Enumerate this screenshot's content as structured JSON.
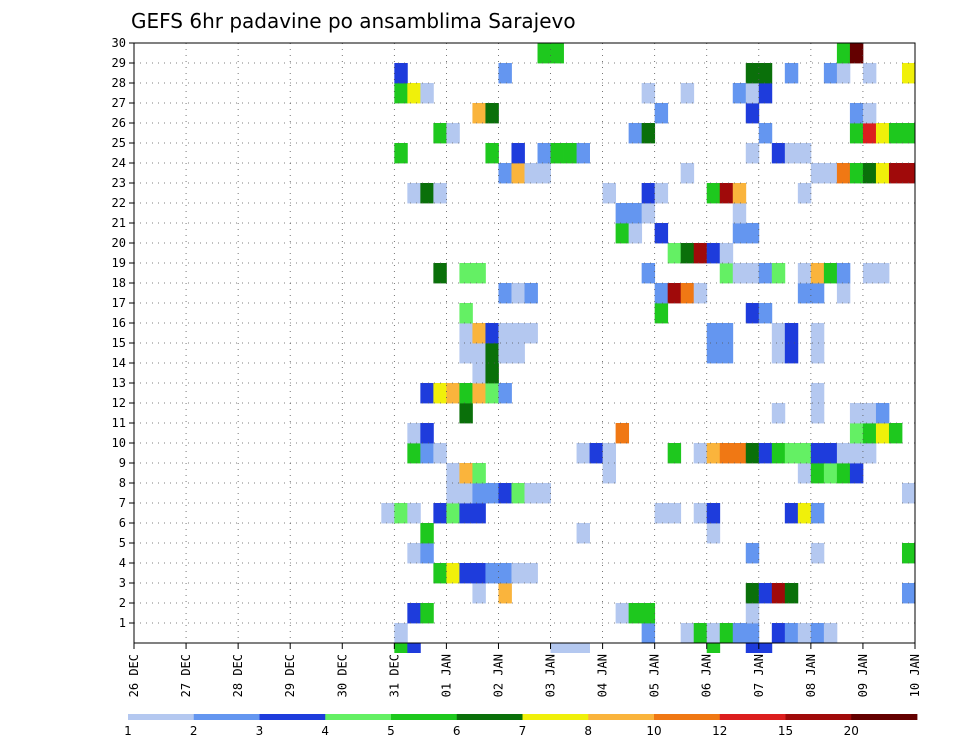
{
  "chart_data": {
    "type": "heatmap",
    "title": "GEFS 6hr padavine po ansamblima Sarajevo",
    "xlabel": "",
    "ylabel": "",
    "x_tick_labels": [
      "26 DEC",
      "27 DEC",
      "28 DEC",
      "29 DEC",
      "30 DEC",
      "31 DEC",
      "01 JAN",
      "02 JAN",
      "03 JAN",
      "04 JAN",
      "05 JAN",
      "06 JAN",
      "07 JAN",
      "08 JAN",
      "09 JAN",
      "10 JAN"
    ],
    "xlim": [
      0,
      60
    ],
    "x_unit": "6-hour steps from 26 DEC 00Z",
    "y_tick_labels": [
      "1",
      "2",
      "3",
      "4",
      "5",
      "6",
      "7",
      "8",
      "9",
      "10",
      "11",
      "12",
      "13",
      "14",
      "15",
      "16",
      "17",
      "18",
      "19",
      "20",
      "21",
      "22",
      "23",
      "24",
      "25",
      "26",
      "27",
      "28",
      "29",
      "30"
    ],
    "ylim": [
      0,
      30
    ],
    "grid": true,
    "color_levels": [
      1,
      2,
      3,
      4,
      5,
      6,
      7,
      8,
      10,
      12,
      15,
      20
    ],
    "color_labels": [
      "1",
      "2",
      "3",
      "4",
      "5",
      "6",
      "7",
      "8",
      "10",
      "12",
      "15",
      "20"
    ],
    "colors": [
      "#b4c8f0",
      "#6496f0",
      "#1e3cdc",
      "#64f064",
      "#1ec81e",
      "#0a700a",
      "#f0f00a",
      "#fab43c",
      "#f07814",
      "#dc1e1e",
      "#a00a0a",
      "#640000"
    ],
    "members": [
      {
        "member": 1,
        "cells": [
          [
            20,
            1
          ],
          [
            39,
            2
          ],
          [
            42,
            1
          ],
          [
            43,
            5
          ],
          [
            44,
            1
          ],
          [
            45,
            5
          ],
          [
            46,
            2
          ],
          [
            47,
            2
          ],
          [
            49,
            3
          ],
          [
            50,
            2
          ],
          [
            51,
            1
          ],
          [
            52,
            2
          ],
          [
            53,
            1
          ]
        ]
      },
      {
        "member": 2,
        "cells": [
          [
            21,
            3
          ],
          [
            22,
            5
          ],
          [
            37,
            1
          ],
          [
            38,
            5
          ],
          [
            39,
            5
          ],
          [
            47,
            1
          ]
        ]
      },
      {
        "member": 3,
        "cells": [
          [
            26,
            1
          ],
          [
            28,
            8
          ],
          [
            47,
            6
          ],
          [
            48,
            3
          ],
          [
            49,
            11
          ],
          [
            50,
            6
          ],
          [
            59,
            2
          ]
        ]
      },
      {
        "member": 4,
        "cells": [
          [
            23,
            5
          ],
          [
            24,
            7
          ],
          [
            25,
            3
          ],
          [
            26,
            3
          ],
          [
            27,
            2
          ],
          [
            28,
            2
          ],
          [
            29,
            1
          ],
          [
            30,
            1
          ]
        ]
      },
      {
        "member": 5,
        "cells": [
          [
            21,
            1
          ],
          [
            22,
            2
          ],
          [
            47,
            2
          ],
          [
            52,
            1
          ],
          [
            59,
            5
          ]
        ]
      },
      {
        "member": 6,
        "cells": [
          [
            22,
            5
          ],
          [
            34,
            1
          ],
          [
            44,
            1
          ]
        ]
      },
      {
        "member": 7,
        "cells": [
          [
            19,
            1
          ],
          [
            20,
            4
          ],
          [
            21,
            1
          ],
          [
            23,
            3
          ],
          [
            24,
            4
          ],
          [
            25,
            3
          ],
          [
            26,
            3
          ],
          [
            40,
            1
          ],
          [
            41,
            1
          ],
          [
            43,
            1
          ],
          [
            44,
            3
          ],
          [
            50,
            3
          ],
          [
            51,
            7
          ],
          [
            52,
            2
          ]
        ]
      },
      {
        "member": 8,
        "cells": [
          [
            24,
            1
          ],
          [
            25,
            1
          ],
          [
            26,
            2
          ],
          [
            27,
            2
          ],
          [
            28,
            3
          ],
          [
            29,
            4
          ],
          [
            30,
            1
          ],
          [
            31,
            1
          ],
          [
            59,
            1
          ]
        ]
      },
      {
        "member": 9,
        "cells": [
          [
            24,
            1
          ],
          [
            25,
            8
          ],
          [
            26,
            4
          ],
          [
            36,
            1
          ],
          [
            51,
            1
          ],
          [
            52,
            5
          ],
          [
            53,
            4
          ],
          [
            54,
            5
          ],
          [
            55,
            3
          ]
        ]
      },
      {
        "member": 10,
        "cells": [
          [
            21,
            5
          ],
          [
            22,
            2
          ],
          [
            23,
            1
          ],
          [
            34,
            1
          ],
          [
            35,
            3
          ],
          [
            36,
            1
          ],
          [
            41,
            5
          ],
          [
            43,
            1
          ],
          [
            44,
            8
          ],
          [
            45,
            9
          ],
          [
            46,
            9
          ],
          [
            47,
            6
          ],
          [
            48,
            3
          ],
          [
            49,
            5
          ],
          [
            50,
            4
          ],
          [
            51,
            4
          ],
          [
            52,
            3
          ],
          [
            53,
            3
          ],
          [
            54,
            1
          ],
          [
            55,
            1
          ],
          [
            56,
            1
          ]
        ]
      },
      {
        "member": 11,
        "cells": [
          [
            21,
            1
          ],
          [
            22,
            3
          ],
          [
            37,
            9
          ],
          [
            55,
            4
          ],
          [
            56,
            5
          ],
          [
            57,
            7
          ],
          [
            58,
            5
          ]
        ]
      },
      {
        "member": 12,
        "cells": [
          [
            25,
            6
          ],
          [
            49,
            1
          ],
          [
            52,
            1
          ],
          [
            55,
            1
          ],
          [
            56,
            1
          ],
          [
            57,
            2
          ]
        ]
      },
      {
        "member": 13,
        "cells": [
          [
            22,
            3
          ],
          [
            23,
            7
          ],
          [
            24,
            8
          ],
          [
            25,
            5
          ],
          [
            26,
            8
          ],
          [
            27,
            4
          ],
          [
            28,
            2
          ],
          [
            52,
            1
          ]
        ]
      },
      {
        "member": 14,
        "cells": [
          [
            26,
            1
          ],
          [
            27,
            6
          ]
        ]
      },
      {
        "member": 15,
        "cells": [
          [
            25,
            1
          ],
          [
            26,
            1
          ],
          [
            27,
            6
          ],
          [
            28,
            1
          ],
          [
            29,
            1
          ],
          [
            44,
            2
          ],
          [
            45,
            2
          ],
          [
            49,
            1
          ],
          [
            50,
            3
          ],
          [
            52,
            1
          ]
        ]
      },
      {
        "member": 16,
        "cells": [
          [
            25,
            1
          ],
          [
            26,
            8
          ],
          [
            27,
            3
          ],
          [
            28,
            1
          ],
          [
            29,
            1
          ],
          [
            30,
            1
          ],
          [
            44,
            2
          ],
          [
            45,
            2
          ],
          [
            49,
            1
          ],
          [
            50,
            3
          ],
          [
            52,
            1
          ]
        ]
      },
      {
        "member": 17,
        "cells": [
          [
            25,
            4
          ],
          [
            40,
            5
          ],
          [
            47,
            3
          ],
          [
            48,
            2
          ]
        ]
      },
      {
        "member": 18,
        "cells": [
          [
            28,
            2
          ],
          [
            29,
            1
          ],
          [
            30,
            2
          ],
          [
            40,
            2
          ],
          [
            41,
            11
          ],
          [
            42,
            9
          ],
          [
            43,
            1
          ],
          [
            51,
            2
          ],
          [
            52,
            2
          ],
          [
            54,
            1
          ]
        ]
      },
      {
        "member": 19,
        "cells": [
          [
            23,
            6
          ],
          [
            25,
            4
          ],
          [
            26,
            4
          ],
          [
            39,
            2
          ],
          [
            45,
            4
          ],
          [
            46,
            1
          ],
          [
            47,
            1
          ],
          [
            48,
            2
          ],
          [
            49,
            4
          ],
          [
            51,
            1
          ],
          [
            52,
            8
          ],
          [
            53,
            5
          ],
          [
            54,
            2
          ],
          [
            56,
            1
          ],
          [
            57,
            1
          ]
        ]
      },
      {
        "member": 20,
        "cells": [
          [
            41,
            4
          ],
          [
            42,
            6
          ],
          [
            43,
            11
          ],
          [
            44,
            3
          ],
          [
            45,
            1
          ]
        ]
      },
      {
        "member": 21,
        "cells": [
          [
            37,
            5
          ],
          [
            38,
            1
          ],
          [
            40,
            3
          ],
          [
            46,
            2
          ],
          [
            47,
            2
          ]
        ]
      },
      {
        "member": 22,
        "cells": [
          [
            37,
            2
          ],
          [
            38,
            2
          ],
          [
            39,
            1
          ],
          [
            46,
            1
          ]
        ]
      },
      {
        "member": 23,
        "cells": [
          [
            21,
            1
          ],
          [
            22,
            6
          ],
          [
            23,
            1
          ],
          [
            36,
            1
          ],
          [
            39,
            3
          ],
          [
            40,
            1
          ],
          [
            44,
            5
          ],
          [
            45,
            11
          ],
          [
            46,
            8
          ],
          [
            51,
            1
          ]
        ]
      },
      {
        "member": 24,
        "cells": [
          [
            28,
            2
          ],
          [
            29,
            8
          ],
          [
            30,
            1
          ],
          [
            31,
            1
          ],
          [
            42,
            1
          ],
          [
            52,
            1
          ],
          [
            53,
            1
          ],
          [
            54,
            9
          ],
          [
            55,
            5
          ],
          [
            56,
            6
          ],
          [
            57,
            7
          ],
          [
            58,
            11
          ],
          [
            59,
            11
          ]
        ]
      },
      {
        "member": 25,
        "cells": [
          [
            20,
            5
          ],
          [
            27,
            5
          ],
          [
            29,
            3
          ],
          [
            31,
            2
          ],
          [
            32,
            5
          ],
          [
            33,
            5
          ],
          [
            34,
            2
          ],
          [
            47,
            1
          ],
          [
            49,
            3
          ],
          [
            50,
            1
          ],
          [
            51,
            1
          ]
        ]
      },
      {
        "member": 26,
        "cells": [
          [
            23,
            5
          ],
          [
            24,
            1
          ],
          [
            38,
            2
          ],
          [
            39,
            6
          ],
          [
            48,
            2
          ],
          [
            55,
            5
          ],
          [
            56,
            10
          ],
          [
            57,
            7
          ],
          [
            58,
            5
          ],
          [
            59,
            5
          ]
        ]
      },
      {
        "member": 27,
        "cells": [
          [
            26,
            8
          ],
          [
            27,
            6
          ],
          [
            40,
            2
          ],
          [
            47,
            3
          ],
          [
            55,
            2
          ],
          [
            56,
            1
          ]
        ]
      },
      {
        "member": 28,
        "cells": [
          [
            20,
            5
          ],
          [
            21,
            7
          ],
          [
            22,
            1
          ],
          [
            39,
            1
          ],
          [
            42,
            1
          ],
          [
            46,
            2
          ],
          [
            47,
            1
          ],
          [
            48,
            3
          ]
        ]
      },
      {
        "member": 29,
        "cells": [
          [
            20,
            3
          ],
          [
            28,
            2
          ],
          [
            47,
            6
          ],
          [
            48,
            6
          ],
          [
            50,
            2
          ],
          [
            53,
            2
          ],
          [
            54,
            1
          ],
          [
            56,
            1
          ],
          [
            59,
            7
          ]
        ]
      },
      {
        "member": 30,
        "cells": [
          [
            31,
            5
          ],
          [
            32,
            5
          ],
          [
            54,
            5
          ],
          [
            55,
            12
          ]
        ]
      }
    ],
    "overflow_row": {
      "cells": [
        [
          20,
          5
        ],
        [
          21,
          3
        ],
        [
          32,
          1
        ],
        [
          33,
          1
        ],
        [
          34,
          1
        ],
        [
          44,
          5
        ],
        [
          47,
          3
        ],
        [
          48,
          3
        ]
      ]
    }
  }
}
